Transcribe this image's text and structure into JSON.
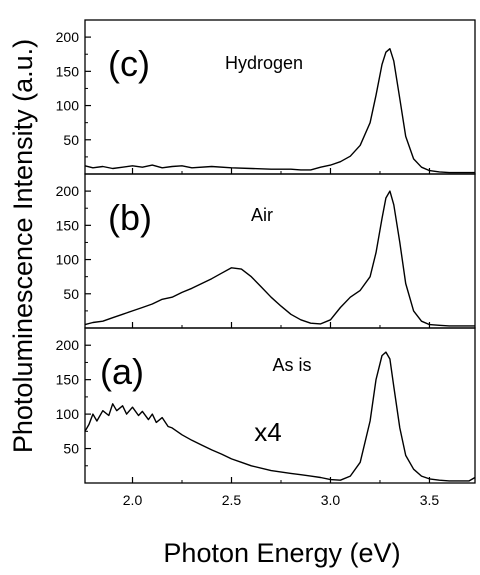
{
  "chart_data": {
    "type": "line",
    "xlabel": "Photon Energy (eV)",
    "ylabel": "Photoluminescence Intensity (a.u.)",
    "xlim": [
      1.76,
      3.73
    ],
    "x_ticks": [
      2.0,
      2.5,
      3.0,
      3.5
    ],
    "x_tick_labels": [
      "2.0",
      "2.5",
      "3.0",
      "3.5"
    ],
    "grid": false,
    "panels": [
      {
        "id": "c",
        "label": "(c)",
        "annotation": "Hydrogen",
        "ylim": [
          0,
          225
        ],
        "y_ticks": [
          50,
          100,
          150,
          200
        ],
        "x": [
          1.76,
          1.8,
          1.85,
          1.9,
          1.95,
          2.0,
          2.05,
          2.1,
          2.15,
          2.2,
          2.25,
          2.3,
          2.4,
          2.5,
          2.6,
          2.7,
          2.8,
          2.85,
          2.9,
          2.95,
          3.0,
          3.05,
          3.1,
          3.15,
          3.2,
          3.23,
          3.26,
          3.28,
          3.3,
          3.32,
          3.35,
          3.38,
          3.42,
          3.46,
          3.5,
          3.55,
          3.6,
          3.65,
          3.7,
          3.73
        ],
        "y": [
          12,
          9,
          11,
          8,
          10,
          12,
          10,
          13,
          9,
          11,
          12,
          9,
          11,
          9,
          8,
          7,
          7,
          6,
          6,
          10,
          13,
          18,
          26,
          42,
          75,
          115,
          160,
          178,
          183,
          165,
          110,
          55,
          22,
          10,
          5,
          3,
          2,
          2,
          2,
          2
        ]
      },
      {
        "id": "b",
        "label": "(b)",
        "annotation": "Air",
        "ylim": [
          0,
          225
        ],
        "y_ticks": [
          50,
          100,
          150,
          200
        ],
        "x": [
          1.76,
          1.8,
          1.85,
          1.9,
          1.95,
          2.0,
          2.05,
          2.1,
          2.15,
          2.2,
          2.25,
          2.3,
          2.35,
          2.4,
          2.45,
          2.5,
          2.55,
          2.6,
          2.65,
          2.7,
          2.75,
          2.8,
          2.85,
          2.9,
          2.95,
          3.0,
          3.05,
          3.1,
          3.15,
          3.2,
          3.23,
          3.26,
          3.28,
          3.3,
          3.32,
          3.35,
          3.38,
          3.42,
          3.46,
          3.5,
          3.55,
          3.6,
          3.65,
          3.7,
          3.73
        ],
        "y": [
          5,
          8,
          10,
          15,
          20,
          25,
          30,
          35,
          42,
          45,
          52,
          58,
          65,
          72,
          80,
          88,
          86,
          75,
          60,
          45,
          32,
          20,
          12,
          7,
          6,
          12,
          30,
          45,
          55,
          75,
          110,
          160,
          190,
          200,
          180,
          125,
          65,
          25,
          10,
          5,
          4,
          3,
          3,
          3,
          3
        ]
      },
      {
        "id": "a",
        "label": "(a)",
        "annotation": "As is",
        "scale_annotation": "x4",
        "ylim": [
          0,
          225
        ],
        "y_ticks": [
          50,
          100,
          150,
          200
        ],
        "x": [
          1.76,
          1.78,
          1.8,
          1.82,
          1.85,
          1.88,
          1.9,
          1.92,
          1.95,
          1.97,
          2.0,
          2.03,
          2.05,
          2.08,
          2.1,
          2.12,
          2.15,
          2.18,
          2.2,
          2.25,
          2.3,
          2.35,
          2.4,
          2.45,
          2.5,
          2.55,
          2.6,
          2.7,
          2.8,
          2.85,
          2.9,
          2.95,
          3.0,
          3.05,
          3.1,
          3.15,
          3.2,
          3.23,
          3.26,
          3.28,
          3.3,
          3.32,
          3.35,
          3.38,
          3.42,
          3.46,
          3.5,
          3.55,
          3.6,
          3.65,
          3.7,
          3.73
        ],
        "y": [
          75,
          85,
          100,
          90,
          105,
          98,
          115,
          105,
          112,
          100,
          110,
          98,
          104,
          92,
          100,
          88,
          95,
          82,
          80,
          70,
          62,
          55,
          48,
          42,
          35,
          30,
          25,
          18,
          14,
          12,
          10,
          8,
          5,
          4,
          10,
          30,
          90,
          150,
          185,
          190,
          180,
          140,
          80,
          40,
          20,
          10,
          6,
          4,
          3,
          3,
          3,
          8
        ]
      }
    ]
  }
}
